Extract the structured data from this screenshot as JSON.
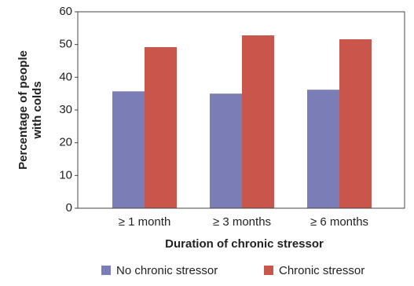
{
  "chart_data": {
    "type": "bar",
    "ylabel": [
      "Percentage of people",
      "with colds"
    ],
    "xlabel": "Duration of chronic stressor",
    "categories": [
      "≥ 1 month",
      "≥ 3 months",
      "≥ 6 months"
    ],
    "series": [
      {
        "name": "No chronic stressor",
        "color": "#7b7db6",
        "values": [
          35.7,
          35,
          36.2
        ]
      },
      {
        "name": "Chronic stressor",
        "color": "#c8564b",
        "values": [
          49.2,
          52.8,
          51.6
        ]
      }
    ],
    "ylim": [
      0,
      60
    ],
    "yticks": [
      0,
      10,
      20,
      30,
      40,
      50,
      60
    ],
    "grid": false
  }
}
